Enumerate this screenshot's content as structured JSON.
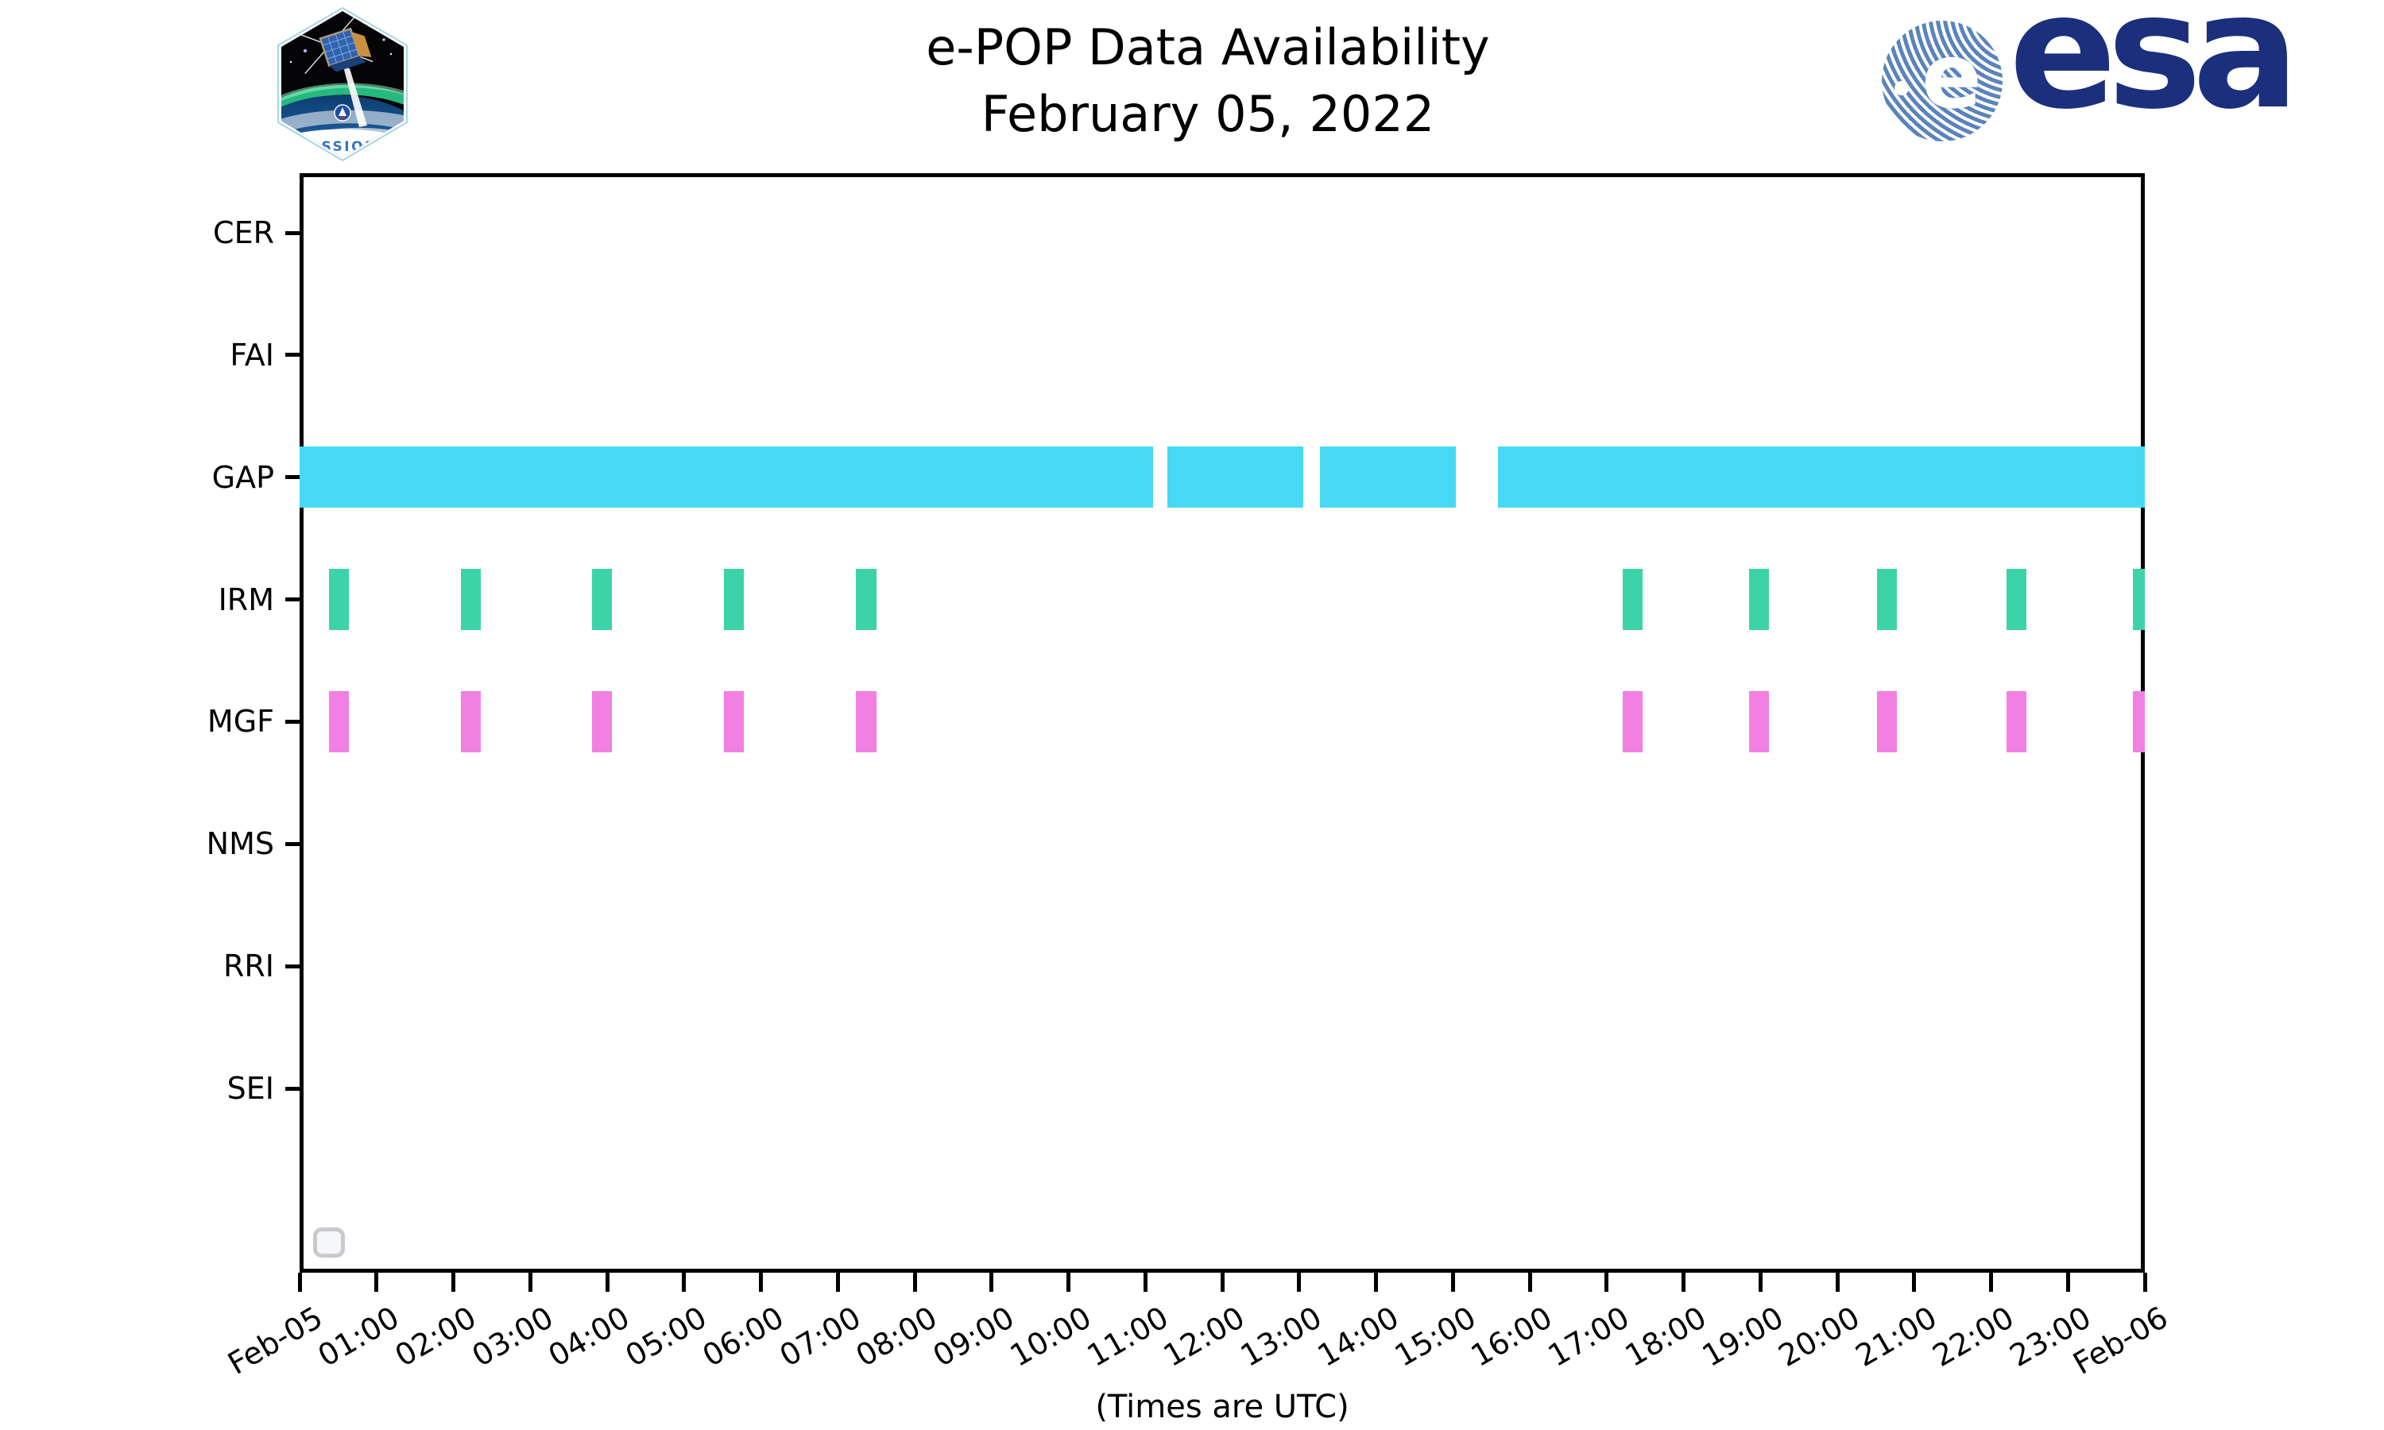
{
  "title": "e-POP Data Availability",
  "subtitle": "February 05, 2022",
  "footer_caption": "(Times are UTC)",
  "logos": {
    "cassiope_label": "CASSIOPE",
    "esa_label": "esa"
  },
  "colors": {
    "gap_bar": "#46d8f5",
    "irm_bar": "#3dd3a8",
    "mgf_bar": "#f280e2",
    "axis": "#000000",
    "esa_navy": "#1b2f7d",
    "esa_stripe": "#5a84bb",
    "cassiope_text": "#3b74bf"
  },
  "chart_data": {
    "type": "bar",
    "subtype": "timeline-availability",
    "title": "e-POP Data Availability",
    "subtitle": "February 05, 2022",
    "xlabel": "(Times are UTC)",
    "ylabel": "",
    "rows": [
      "CER",
      "FAI",
      "GAP",
      "IRM",
      "MGF",
      "NMS",
      "RRI",
      "SEI"
    ],
    "x_tick_labels": [
      "Feb-05",
      "01:00",
      "02:00",
      "03:00",
      "04:00",
      "05:00",
      "06:00",
      "07:00",
      "08:00",
      "09:00",
      "10:00",
      "11:00",
      "12:00",
      "13:00",
      "14:00",
      "15:00",
      "16:00",
      "17:00",
      "18:00",
      "19:00",
      "20:00",
      "21:00",
      "22:00",
      "23:00",
      "Feb-06"
    ],
    "x_tick_hours": [
      0,
      1,
      2,
      3,
      4,
      5,
      6,
      7,
      8,
      9,
      10,
      11,
      12,
      13,
      14,
      15,
      16,
      17,
      18,
      19,
      20,
      21,
      22,
      23,
      24
    ],
    "xlim_hours": [
      0,
      24
    ],
    "grid": false,
    "legend_position": "none",
    "series": [
      {
        "name": "GAP",
        "row": "GAP",
        "color_key": "gap_bar",
        "intervals_hours": [
          [
            0.0,
            11.1
          ],
          [
            11.29,
            13.05
          ],
          [
            13.27,
            15.04
          ],
          [
            15.59,
            24.0
          ]
        ]
      },
      {
        "name": "IRM",
        "row": "IRM",
        "color_key": "irm_bar",
        "intervals_hours": [
          [
            0.38,
            0.64
          ],
          [
            2.1,
            2.36
          ],
          [
            3.8,
            4.06
          ],
          [
            5.52,
            5.78
          ],
          [
            7.24,
            7.5
          ],
          [
            17.21,
            17.47
          ],
          [
            18.85,
            19.11
          ],
          [
            20.52,
            20.78
          ],
          [
            22.2,
            22.46
          ],
          [
            23.85,
            24.0
          ]
        ]
      },
      {
        "name": "MGF",
        "row": "MGF",
        "color_key": "mgf_bar",
        "intervals_hours": [
          [
            0.38,
            0.64
          ],
          [
            2.1,
            2.36
          ],
          [
            3.8,
            4.06
          ],
          [
            5.52,
            5.78
          ],
          [
            7.24,
            7.5
          ],
          [
            17.21,
            17.47
          ],
          [
            18.85,
            19.11
          ],
          [
            20.52,
            20.78
          ],
          [
            22.2,
            22.46
          ],
          [
            23.85,
            24.0
          ]
        ]
      },
      {
        "name": "CER",
        "row": "CER",
        "color_key": "gap_bar",
        "intervals_hours": []
      },
      {
        "name": "FAI",
        "row": "FAI",
        "color_key": "gap_bar",
        "intervals_hours": []
      },
      {
        "name": "NMS",
        "row": "NMS",
        "color_key": "gap_bar",
        "intervals_hours": []
      },
      {
        "name": "RRI",
        "row": "RRI",
        "color_key": "gap_bar",
        "intervals_hours": []
      },
      {
        "name": "SEI",
        "row": "SEI",
        "color_key": "gap_bar",
        "intervals_hours": []
      }
    ]
  }
}
